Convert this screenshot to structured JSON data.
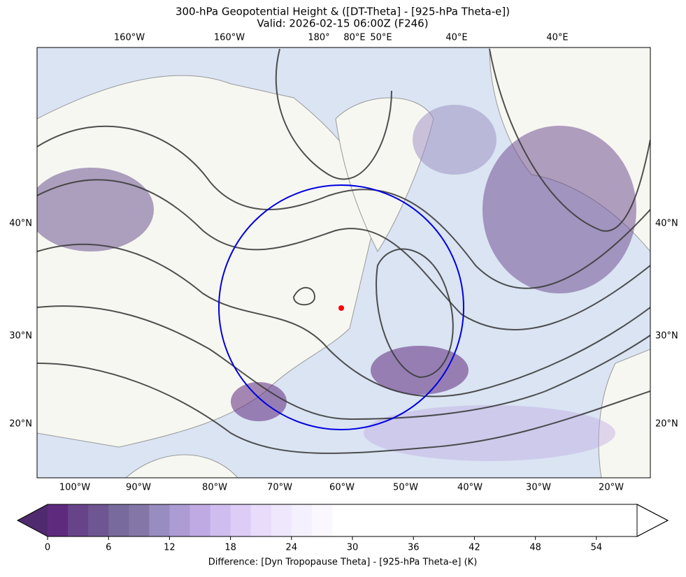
{
  "header": {
    "title": "300-hPa Geopotential Height & ([DT-Theta] - [925-hPa Theta-e])",
    "subtitle": "Valid: 2026-02-15 06:00Z (F246)"
  },
  "map": {
    "top_labels": [
      "160°W",
      "160°W",
      "180°",
      "80°E",
      "50°E",
      "40°E",
      "40°E"
    ],
    "bottom_labels": [
      "100°W",
      "90°W",
      "80°W",
      "70°W",
      "60°W",
      "50°W",
      "40°W",
      "30°W",
      "20°W"
    ],
    "left_labels": [
      "40°N",
      "30°N",
      "20°N"
    ],
    "right_labels": [
      "40°N",
      "30°N",
      "20°N"
    ]
  },
  "colorbar": {
    "label": "Difference: [Dyn Tropopause Theta] - [925-hPa Theta-e] (K)",
    "range": [
      0,
      58
    ],
    "ticks": [
      0,
      6,
      12,
      18,
      24,
      30,
      36,
      42,
      48,
      54
    ],
    "levels": [
      0,
      2,
      4,
      6,
      8,
      10,
      12,
      14,
      16,
      18,
      20,
      22,
      24,
      26,
      28
    ],
    "colors": [
      "#5e2a7e",
      "#67448a",
      "#6f5592",
      "#786a9c",
      "#8477a8",
      "#998cc0",
      "#ad9bd4",
      "#bfaae3",
      "#d0bdef",
      "#ddcdf6",
      "#e8dcfa",
      "#efe7fc",
      "#f5f0fd",
      "#faf8fe"
    ],
    "under_color": "#4f2a6e",
    "over_color": "#ffffff"
  }
}
